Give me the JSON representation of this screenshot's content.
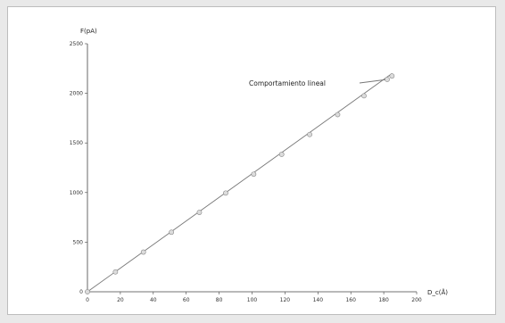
{
  "chart_data": {
    "type": "scatter",
    "title": "",
    "ylabel": "F(pA)",
    "xlabel": "D_c(Å)",
    "xlim": [
      0,
      200
    ],
    "ylim": [
      0,
      2500
    ],
    "xticks": [
      "0",
      "20",
      "40",
      "60",
      "80",
      "100",
      "120",
      "140",
      "160",
      "180",
      "200"
    ],
    "yticks": [
      "0",
      "500",
      "1000",
      "1500",
      "2000",
      "2500"
    ],
    "grid": false,
    "legend_position": "top-right",
    "annotation": "Comportamiento lineal",
    "series": [
      {
        "marker": "circle",
        "x": [
          0,
          17,
          34,
          51,
          68,
          84,
          101,
          118,
          135,
          152,
          168,
          185
        ],
        "y": [
          0,
          200,
          400,
          600,
          800,
          995,
          1185,
          1385,
          1585,
          1785,
          1975,
          2175
        ]
      }
    ],
    "fit_line": {
      "x": [
        0,
        185
      ],
      "y": [
        0,
        2200
      ]
    },
    "colors": {
      "line": "#777777",
      "marker_fill": "#dcdcdc",
      "marker_stroke": "#888888",
      "axis": "#444444"
    }
  }
}
